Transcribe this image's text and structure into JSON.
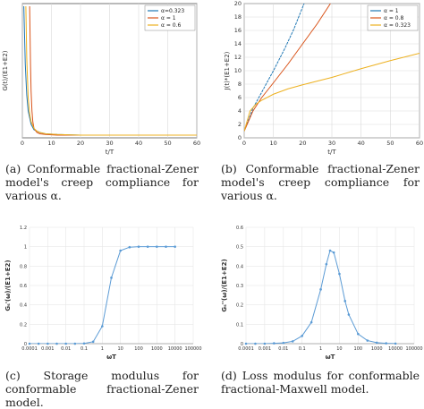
{
  "captions": {
    "a": "(a) Conformable fractional-Zener model's creep compliance for various α.",
    "b": "(b) Conformable fractional-Zener model's creep compliance for various α.",
    "c": "(c) Storage modulus for conformable fractional-Zener model.",
    "d": "(d) Loss modulus for conformable fractional-Maxwell model."
  },
  "chart_data": [
    {
      "id": "a",
      "type": "line",
      "xlabel": "t/T",
      "ylabel": "G(t)/(E1+E2)",
      "xlim": [
        0,
        60
      ],
      "xticks": [
        0,
        10,
        20,
        30,
        40,
        50,
        60
      ],
      "ylim": [
        0,
        1
      ],
      "yticks": [],
      "grid": true,
      "legend_position": "top-right",
      "series": [
        {
          "name": "α=0.323",
          "color": "#1f77b4",
          "x": [
            0.5,
            1,
            1.5,
            2,
            3,
            4,
            6,
            8,
            12,
            20,
            30,
            40,
            60
          ],
          "y": [
            0.98,
            0.55,
            0.32,
            0.2,
            0.1,
            0.06,
            0.04,
            0.03,
            0.025,
            0.02,
            0.02,
            0.02,
            0.02
          ]
        },
        {
          "name": "α = 1",
          "color": "#d95319",
          "x": [
            2.5,
            2.8,
            3,
            3.3,
            3.6,
            4,
            5,
            6,
            8,
            12,
            20,
            30,
            40,
            60
          ],
          "y": [
            0.98,
            0.55,
            0.35,
            0.2,
            0.12,
            0.07,
            0.04,
            0.03,
            0.025,
            0.02,
            0.02,
            0.02,
            0.02,
            0.02
          ]
        },
        {
          "name": "α = 0.6",
          "color": "#edb120",
          "x": [
            1.2,
            1.5,
            2,
            2.5,
            3,
            4,
            5,
            6,
            8,
            12,
            20,
            30,
            40,
            60
          ],
          "y": [
            0.98,
            0.6,
            0.3,
            0.18,
            0.12,
            0.07,
            0.05,
            0.04,
            0.03,
            0.025,
            0.02,
            0.02,
            0.02,
            0.02
          ]
        }
      ]
    },
    {
      "id": "b",
      "type": "line",
      "xlabel": "t/T",
      "ylabel": "J(t)*(E1+E2)",
      "xlim": [
        0,
        60
      ],
      "xticks": [
        0,
        10,
        20,
        30,
        40,
        50,
        60
      ],
      "ylim": [
        0,
        20
      ],
      "yticks": [
        0,
        2,
        4,
        6,
        8,
        10,
        12,
        14,
        16,
        18,
        20
      ],
      "grid": true,
      "legend_position": "top-right",
      "series": [
        {
          "name": "α = 1",
          "color": "#1f77b4",
          "x": [
            0,
            3,
            6,
            10,
            14,
            17,
            19,
            20.5
          ],
          "y": [
            1,
            4.4,
            6.8,
            10,
            13.4,
            16.2,
            18.4,
            20
          ]
        },
        {
          "name": "α = 0.8",
          "color": "#d95319",
          "x": [
            0,
            3,
            6,
            10,
            15,
            20,
            25,
            29.5
          ],
          "y": [
            1,
            4,
            6,
            8.2,
            11,
            14,
            17,
            20
          ]
        },
        {
          "name": "α = 0.323",
          "color": "#edb120",
          "x": [
            0,
            2,
            4,
            6,
            10,
            15,
            20,
            30,
            40,
            50,
            60
          ],
          "y": [
            1,
            4,
            5,
            5.6,
            6.5,
            7.3,
            7.9,
            9,
            10.3,
            11.5,
            12.6
          ]
        }
      ]
    },
    {
      "id": "c",
      "type": "line",
      "xlabel": "ωT",
      "ylabel": "Gₛ'(ω)/(E1+E2)",
      "xscale": "log",
      "xlim": [
        0.0001,
        100000
      ],
      "xticks": [
        "0.0001",
        "0.001",
        "0.01",
        "0.1",
        "1",
        "10",
        "100",
        "1000",
        "10000",
        "100000"
      ],
      "ylim": [
        0,
        1.2
      ],
      "yticks": [
        "0",
        "0.2",
        "0.4",
        "0.6",
        "0.8",
        "1",
        "1.2"
      ],
      "grid": true,
      "series": [
        {
          "name": "",
          "color": "#5b9bd5",
          "x": [
            0.0001,
            0.0003162,
            0.001,
            0.003162,
            0.01,
            0.03162,
            0.1,
            0.3162,
            1,
            3.162,
            10,
            31.62,
            100,
            316.2,
            1000,
            3162,
            10000
          ],
          "y": [
            0,
            0,
            0,
            0,
            0,
            0,
            0.002,
            0.02,
            0.18,
            0.68,
            0.96,
            0.995,
            1,
            1,
            1,
            1,
            1
          ]
        }
      ]
    },
    {
      "id": "d",
      "type": "line",
      "xlabel": "ωT",
      "ylabel": "Gₛ''(ω)/(E1+E2)",
      "xscale": "log",
      "xlim": [
        0.0001,
        100000
      ],
      "xticks": [
        "0.0001",
        "0.001",
        "0.01",
        "0.1",
        "1",
        "10",
        "100",
        "1000",
        "10000",
        "100000"
      ],
      "ylim": [
        0,
        0.6
      ],
      "yticks": [
        "0",
        "0.1",
        "0.2",
        "0.3",
        "0.4",
        "0.5",
        "0.6"
      ],
      "grid": true,
      "series": [
        {
          "name": "",
          "color": "#5b9bd5",
          "x": [
            0.0001,
            0.0003162,
            0.001,
            0.003162,
            0.01,
            0.03162,
            0.1,
            0.3162,
            1,
            2,
            3.162,
            5,
            10,
            20,
            31.62,
            100,
            316.2,
            1000,
            3162,
            10000
          ],
          "y": [
            0,
            0,
            0,
            0.002,
            0.004,
            0.012,
            0.04,
            0.11,
            0.28,
            0.41,
            0.48,
            0.47,
            0.36,
            0.22,
            0.15,
            0.05,
            0.016,
            0.005,
            0.002,
            0.0005
          ]
        }
      ]
    }
  ]
}
